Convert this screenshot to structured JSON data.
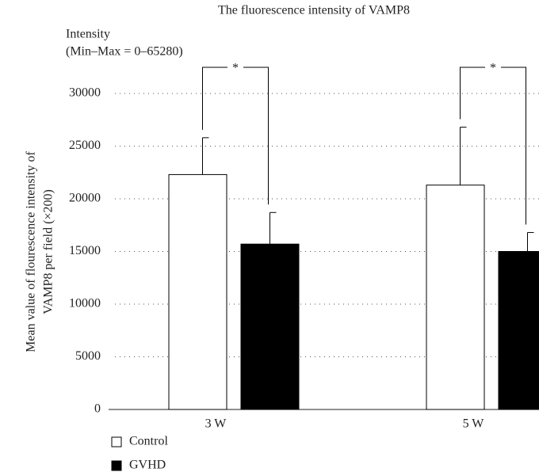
{
  "chart_data": {
    "type": "bar",
    "title": "The fluorescence intensity of VAMP8",
    "annotations_top": [
      "Intensity",
      "(Min–Max = 0–65280)"
    ],
    "ylabel": [
      "Mean value of flourescence intensity of",
      "VAMP8 per field (×200)"
    ],
    "categories": [
      "3 W",
      "5 W"
    ],
    "series": [
      {
        "name": "Control",
        "color": "#ffffff",
        "values": [
          22300,
          21300
        ],
        "errors": [
          3500,
          5500
        ]
      },
      {
        "name": "GVHD",
        "color": "#000000",
        "values": [
          15700,
          15000
        ],
        "errors": [
          3000,
          1800
        ]
      }
    ],
    "significance": [
      "*",
      "*"
    ],
    "ylim": [
      0,
      30000
    ],
    "yticks": [
      0,
      5000,
      10000,
      15000,
      20000,
      25000,
      30000
    ],
    "grid": true,
    "legend": "bottom-left"
  }
}
